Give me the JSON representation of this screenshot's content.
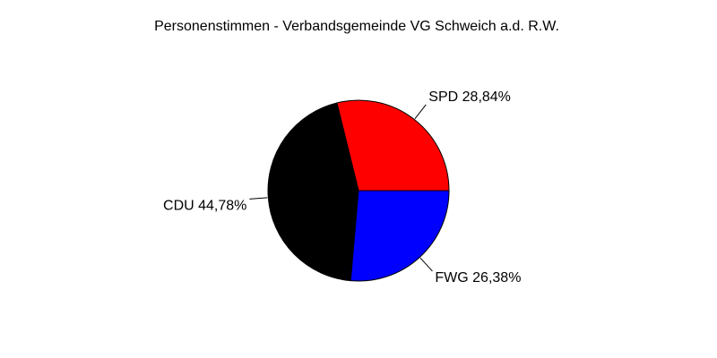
{
  "chart_data": {
    "type": "pie",
    "title": "Personenstimmen - Verbandsgemeinde VG Schweich a.d. R.W.",
    "unit": "percent",
    "start_angle_deg": 0,
    "direction": "counterclockwise",
    "legend_position": "none",
    "background_color": "#ffffff",
    "outline_color": "#000000",
    "text_color": "#000000",
    "slices": [
      {
        "party": "SPD",
        "value": 28.84,
        "label": "SPD 28,84%",
        "color": "#ff0000"
      },
      {
        "party": "CDU",
        "value": 44.78,
        "label": "CDU 44,78%",
        "color": "#000000"
      },
      {
        "party": "FWG",
        "value": 26.38,
        "label": "FWG 26,38%",
        "color": "#0000ff"
      }
    ]
  }
}
